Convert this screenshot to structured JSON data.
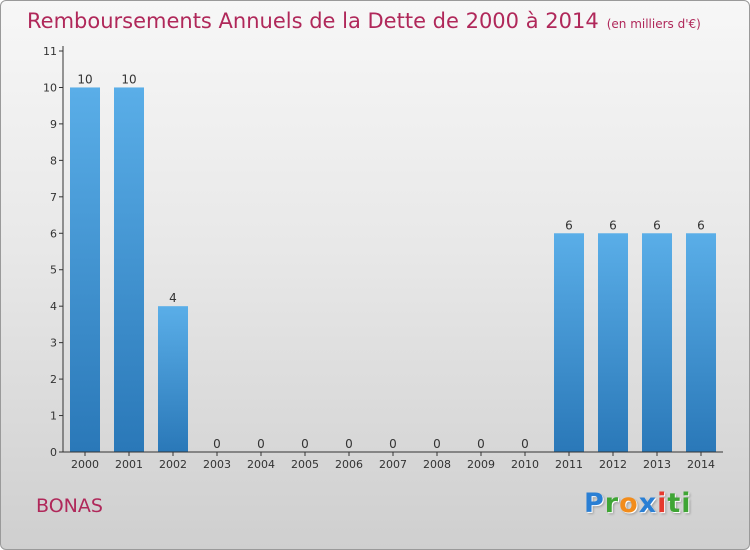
{
  "header": {
    "title": "Remboursements Annuels de la Dette de 2000 à 2014",
    "subtitle": "(en milliers d'€)"
  },
  "footer": {
    "town": "BONAS",
    "brand_letters": [
      "P",
      "r",
      "o",
      "x",
      "i",
      "ti"
    ]
  },
  "colors": {
    "title": "#b0285a",
    "bar_top": "#5aaee8",
    "bar_bottom": "#2a78b8",
    "axis": "#333333"
  },
  "chart_data": {
    "type": "bar",
    "title": "Remboursements Annuels de la Dette de 2000 à 2014",
    "subtitle": "(en milliers d'€)",
    "categories": [
      "2000",
      "2001",
      "2002",
      "2003",
      "2004",
      "2005",
      "2006",
      "2007",
      "2008",
      "2009",
      "2010",
      "2011",
      "2012",
      "2013",
      "2014"
    ],
    "values": [
      10,
      10,
      4,
      0,
      0,
      0,
      0,
      0,
      0,
      0,
      0,
      6,
      6,
      6,
      6
    ],
    "value_labels": [
      "10",
      "10",
      "4",
      "0",
      "0",
      "0",
      "0",
      "0",
      "0",
      "0",
      "0",
      "6",
      "6",
      "6",
      "6"
    ],
    "yticks": [
      0,
      1,
      2,
      3,
      4,
      5,
      6,
      7,
      8,
      9,
      10,
      11
    ],
    "ylim": [
      0,
      11
    ],
    "xlabel": "",
    "ylabel": "",
    "grid": false,
    "legend": "none"
  }
}
